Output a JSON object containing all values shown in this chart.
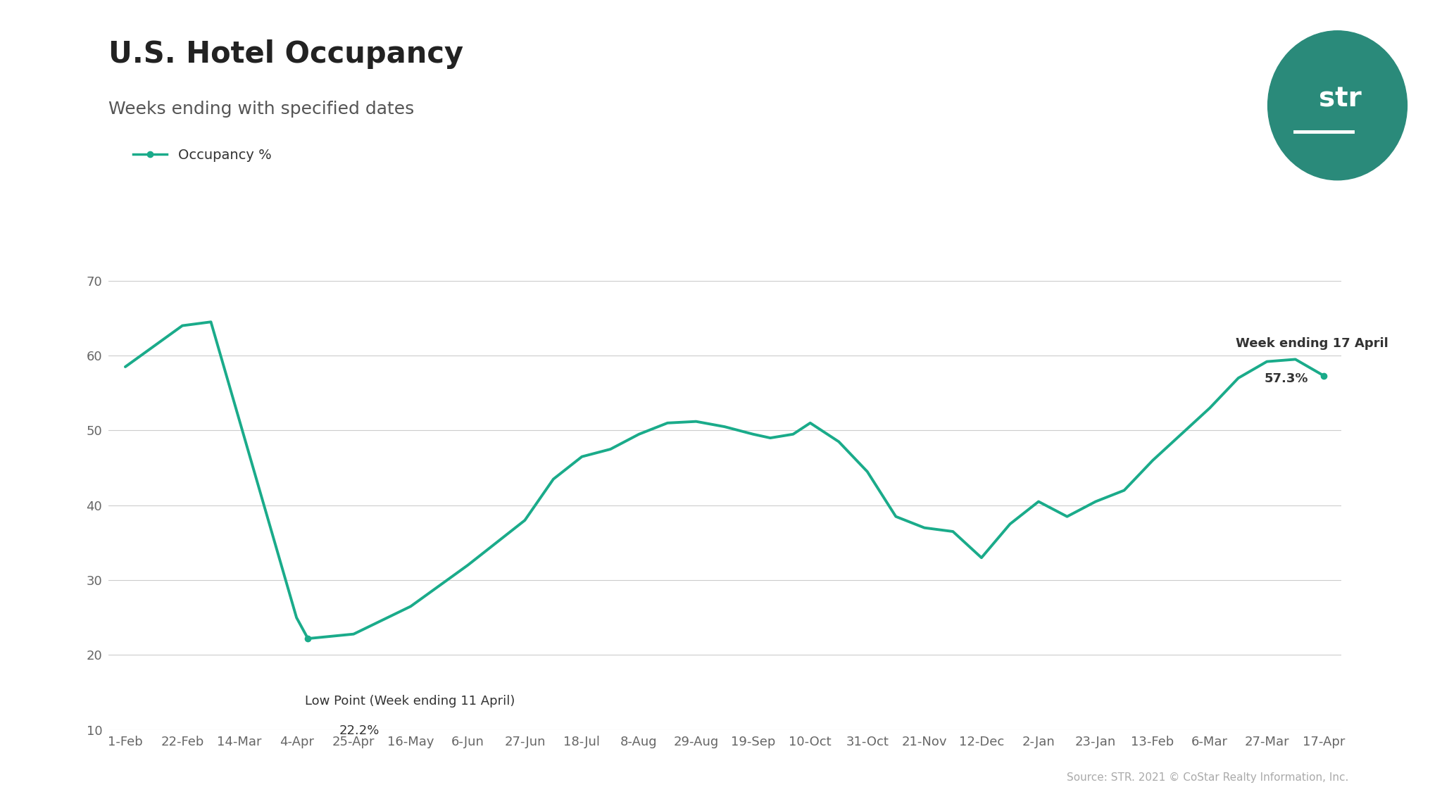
{
  "title": "U.S. Hotel Occupancy",
  "subtitle": "Weeks ending with specified dates",
  "line_color": "#1aab8a",
  "background_color": "#ffffff",
  "legend_label": "Occupancy %",
  "source_text": "Source: STR. 2021 © CoStar Realty Information, Inc.",
  "x_labels": [
    "1-Feb",
    "22-Feb",
    "14-Mar",
    "4-Apr",
    "25-Apr",
    "16-May",
    "6-Jun",
    "27-Jun",
    "18-Jul",
    "8-Aug",
    "29-Aug",
    "19-Sep",
    "10-Oct",
    "31-Oct",
    "21-Nov",
    "12-Dec",
    "2-Jan",
    "23-Jan",
    "13-Feb",
    "6-Mar",
    "27-Mar",
    "17-Apr"
  ],
  "ylim": [
    10,
    75
  ],
  "yticks": [
    10,
    20,
    30,
    40,
    50,
    60,
    70
  ],
  "str_logo_color": "#2a8a7a",
  "data_x": [
    0,
    1,
    1.5,
    3,
    3.2,
    4,
    5,
    6,
    7,
    7.5,
    8,
    8.5,
    9,
    9.5,
    10,
    10.5,
    11,
    11.3,
    11.7,
    12,
    12.5,
    13,
    13.5,
    14,
    14.5,
    15,
    15.5,
    16,
    16.5,
    17,
    17.5,
    18,
    18.5,
    19,
    19.5,
    20,
    20.5,
    21
  ],
  "data_y": [
    58.5,
    64.0,
    64.5,
    25.0,
    22.2,
    22.8,
    26.5,
    32.0,
    38.0,
    43.5,
    46.5,
    47.5,
    49.5,
    51.0,
    51.2,
    50.5,
    49.5,
    49.0,
    49.5,
    51.0,
    48.5,
    44.5,
    38.5,
    37.0,
    36.5,
    33.0,
    37.5,
    40.5,
    38.5,
    40.5,
    42.0,
    46.0,
    49.5,
    53.0,
    57.0,
    59.2,
    59.5,
    57.3
  ]
}
